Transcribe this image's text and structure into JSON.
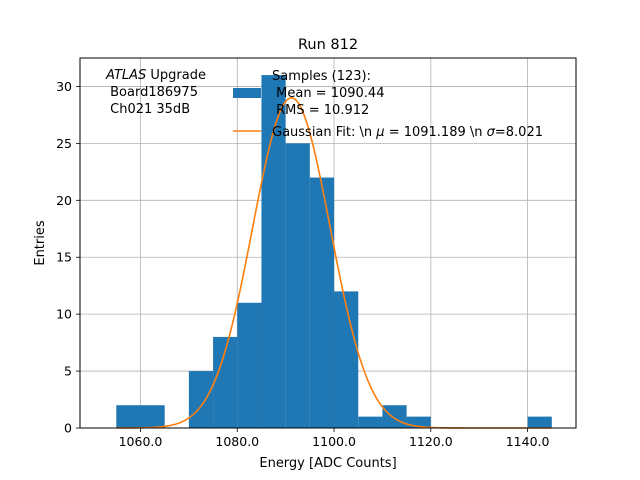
{
  "chart_data": {
    "type": "bar",
    "title": "Run 812",
    "xlabel": "Energy [ADC Counts]",
    "ylabel": "Entries",
    "xlim": [
      1047.5,
      1150
    ],
    "ylim": [
      0,
      32.5
    ],
    "xticks": [
      1060,
      1080,
      1100,
      1120,
      1140
    ],
    "xtick_labels": [
      "1060.0",
      "1080.0",
      "1100.0",
      "1120.0",
      "1140.0"
    ],
    "yticks": [
      0,
      5,
      10,
      15,
      20,
      25,
      30
    ],
    "ytick_labels": [
      "0",
      "5",
      "10",
      "15",
      "20",
      "25",
      "30"
    ],
    "grid": true,
    "legend_position": "top-right",
    "bin_width": 5,
    "histogram": {
      "bin_starts": [
        1055,
        1060,
        1065,
        1070,
        1075,
        1080,
        1085,
        1090,
        1095,
        1100,
        1105,
        1110,
        1115,
        1120,
        1125,
        1130,
        1135,
        1140
      ],
      "counts": [
        2,
        2,
        0,
        5,
        8,
        11,
        31,
        25,
        22,
        12,
        1,
        2,
        1,
        0,
        0,
        0,
        0,
        1
      ],
      "color": "#1f77b4"
    },
    "fit": {
      "type": "gaussian",
      "mu": 1091.189,
      "sigma": 8.021,
      "peak": 29.0,
      "x_range": [
        1055,
        1145
      ],
      "color": "#ff7f0e"
    },
    "annotation": {
      "italic": "ATLAS",
      "rest": " Upgrade",
      "line2": " Board186975",
      "line3": " Ch021 35dB"
    },
    "legend": {
      "samples_line1": "Samples (123):",
      "samples_line2": " Mean = 1090.44",
      "samples_line3": " RMS = 10.912",
      "fit_prefix": "Gaussian Fit: \\n ",
      "fit_mu_symbol": "μ",
      "fit_mid": " = 1091.189 \\n ",
      "fit_sigma_symbol": "σ",
      "fit_suffix": "=8.021"
    }
  }
}
